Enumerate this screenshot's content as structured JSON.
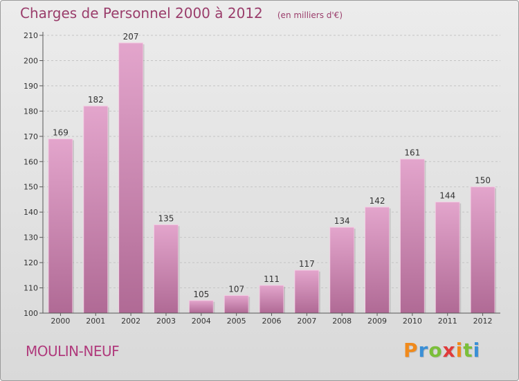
{
  "page": {
    "title": "Charges de Personnel 2000 à 2012",
    "subtitle": "(en milliers d'€)",
    "commune": "MOULIN-NEUF",
    "logo": {
      "text": "Proxiti",
      "letter_colors": [
        "#f08a1c",
        "#3a8fd6",
        "#7bbf3a",
        "#e03a3a",
        "#f08a1c",
        "#7bbf3a",
        "#3a8fd6"
      ]
    }
  },
  "chart_data": {
    "type": "bar",
    "categories": [
      "2000",
      "2001",
      "2002",
      "2003",
      "2004",
      "2005",
      "2006",
      "2007",
      "2008",
      "2009",
      "2010",
      "2011",
      "2012"
    ],
    "values": [
      169,
      182,
      207,
      135,
      105,
      107,
      111,
      117,
      134,
      142,
      161,
      144,
      150
    ],
    "data_labels": [
      "169",
      "182",
      "207",
      "135",
      "105",
      "107",
      "111",
      "117",
      "134",
      "142",
      "161",
      "144",
      "150"
    ],
    "ylim": [
      100,
      210
    ],
    "yticks": [
      "100",
      "110",
      "120",
      "130",
      "140",
      "150",
      "160",
      "170",
      "180",
      "190",
      "200",
      "210"
    ],
    "grid": true,
    "colors": {
      "bar_top": "#e3a5cc",
      "bar_bottom": "#b06a95",
      "bar_edge": "#f3cfe4",
      "text": "#333333"
    }
  }
}
